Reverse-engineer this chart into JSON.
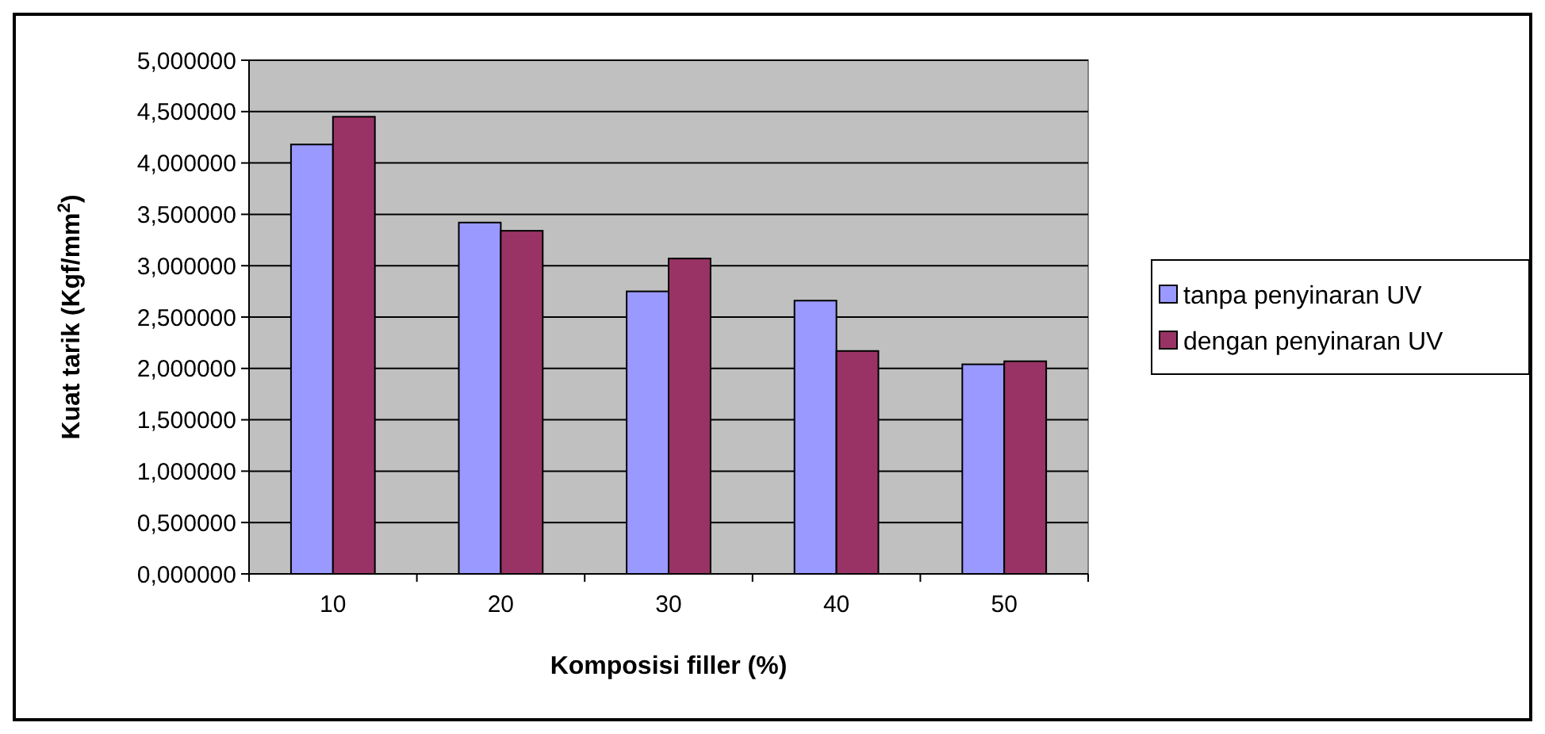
{
  "chart_data": {
    "type": "bar",
    "xlabel": "Komposisi filler (%)",
    "ylabel": "Kuat tarik (Kgf/mm$^{2}$)",
    "categories": [
      "10",
      "20",
      "30",
      "40",
      "50"
    ],
    "series": [
      {
        "name": "tanpa penyinaran UV",
        "color": "#9999ff",
        "values": [
          4.18,
          3.42,
          2.75,
          2.66,
          2.04
        ]
      },
      {
        "name": "dengan penyinaran UV",
        "color": "#993366",
        "values": [
          4.45,
          3.34,
          3.07,
          2.17,
          2.07
        ]
      }
    ],
    "ylim": [
      0,
      5
    ],
    "yticks": [
      {
        "value": 0,
        "label": "0,000000"
      },
      {
        "value": 0.5,
        "label": "0,500000"
      },
      {
        "value": 1,
        "label": "1,000000"
      },
      {
        "value": 1.5,
        "label": "1,500000"
      },
      {
        "value": 2,
        "label": "2,000000"
      },
      {
        "value": 2.5,
        "label": "2,500000"
      },
      {
        "value": 3,
        "label": "3,000000"
      },
      {
        "value": 3.5,
        "label": "3,500000"
      },
      {
        "value": 4,
        "label": "4,000000"
      },
      {
        "value": 4.5,
        "label": "4,500000"
      },
      {
        "value": 5,
        "label": "5,000000"
      }
    ],
    "grid": "y",
    "legend": "right"
  }
}
